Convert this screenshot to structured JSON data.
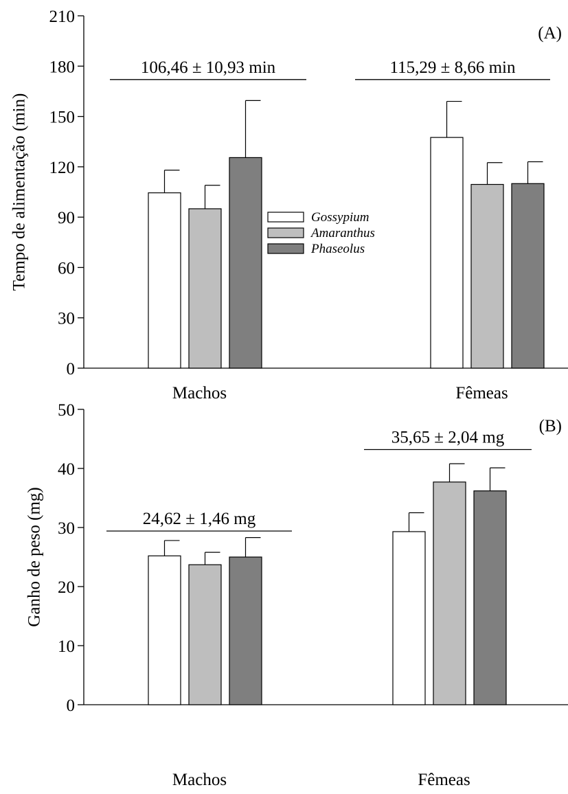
{
  "chart_data": [
    {
      "type": "bar",
      "panel_label": "(A)",
      "ylabel": "Tempo de alimentação (min)",
      "ylim": [
        0,
        210
      ],
      "yticks": [
        0,
        30,
        60,
        90,
        120,
        150,
        180,
        210
      ],
      "categories": [
        "Machos",
        "Fêmeas"
      ],
      "series": [
        {
          "name": "Gossypium",
          "color": "#ffffff",
          "values": [
            104.5,
            137.5
          ],
          "errors": [
            13.5,
            21.5
          ]
        },
        {
          "name": "Amaranthus",
          "color": "#bebebe",
          "values": [
            95,
            109.5
          ],
          "errors": [
            14,
            13
          ]
        },
        {
          "name": "Phaseolus",
          "color": "#7f7f7f",
          "values": [
            125.5,
            110
          ],
          "errors": [
            34,
            13
          ]
        }
      ],
      "group_annotations": [
        "106,46 ± 10,93 min",
        "115,29 ± 8,66 min"
      ],
      "annotation_levels": [
        172,
        172
      ],
      "legend_position": "center"
    },
    {
      "type": "bar",
      "panel_label": "(B)",
      "ylabel": "Ganho de peso (mg)",
      "ylim": [
        0,
        50
      ],
      "yticks": [
        0,
        10,
        20,
        30,
        40,
        50
      ],
      "categories": [
        "Machos",
        "Fêmeas"
      ],
      "series": [
        {
          "name": "Gossypium",
          "color": "#ffffff",
          "values": [
            25.2,
            29.3
          ],
          "errors": [
            2.6,
            3.2
          ]
        },
        {
          "name": "Amaranthus",
          "color": "#bebebe",
          "values": [
            23.7,
            37.7
          ],
          "errors": [
            2.1,
            3.1
          ]
        },
        {
          "name": "Phaseolus",
          "color": "#7f7f7f",
          "values": [
            25,
            36.2
          ],
          "errors": [
            3.3,
            3.9
          ]
        }
      ],
      "group_annotations": [
        "24,62 ± 1,46 mg",
        "35,65 ± 2,04 mg"
      ],
      "annotation_levels": [
        29.4,
        43.2
      ]
    }
  ]
}
